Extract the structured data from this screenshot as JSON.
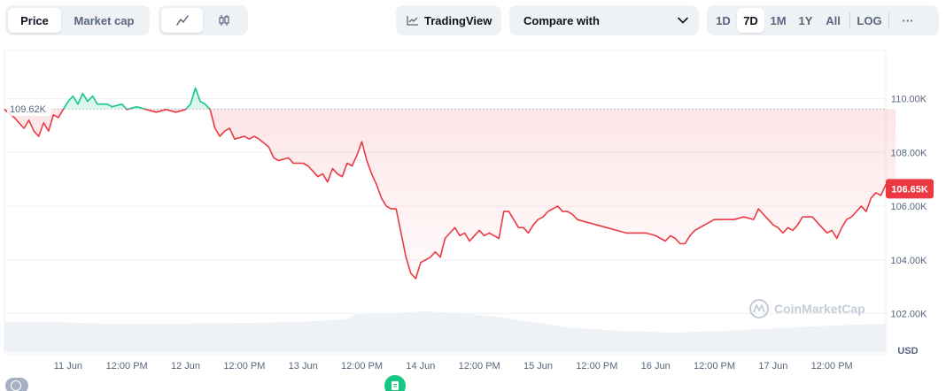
{
  "toolbar": {
    "type_tabs": [
      "Price",
      "Market cap"
    ],
    "tradingview_label": "TradingView",
    "compare_label": "Compare with",
    "ranges": [
      "1D",
      "7D",
      "1M",
      "1Y",
      "All"
    ],
    "log_label": "LOG",
    "more_label": "···"
  },
  "chart_data": {
    "type": "area",
    "y_ticks": [
      "110.00K",
      "108.00K",
      "106.00K",
      "104.00K",
      "102.00K"
    ],
    "y_tick_values": [
      110000,
      108000,
      106000,
      104000,
      102000
    ],
    "ylim": [
      100500,
      111800
    ],
    "x_ticks": [
      "11 Jun",
      "12:00 PM",
      "12 Jun",
      "12:00 PM",
      "13 Jun",
      "12:00 PM",
      "14 Jun",
      "12:00 PM",
      "15 Jun",
      "12:00 PM",
      "16 Jun",
      "12:00 PM",
      "17 Jun",
      "12:00 PM"
    ],
    "x_tick_hours": [
      24,
      36,
      48,
      60,
      72,
      84,
      96,
      108,
      120,
      132,
      144,
      156,
      168,
      180
    ],
    "xlim_hours": [
      11,
      191
    ],
    "baseline_value": 109620,
    "baseline_label": "109.62K",
    "current_label": "106.65K",
    "current_value": 106650,
    "unit": "USD",
    "watermark": "CoinMarketCap",
    "colors": {
      "up": "#16c784",
      "down": "#ea3943",
      "grid": "#eff2f5",
      "volume": "#e4e8ee"
    },
    "series": [
      {
        "values": [
          [
            11,
            109600
          ],
          [
            13,
            109300
          ],
          [
            14,
            109100
          ],
          [
            15,
            108900
          ],
          [
            16,
            109200
          ],
          [
            17,
            108800
          ],
          [
            18,
            108600
          ],
          [
            19,
            109100
          ],
          [
            20,
            108800
          ],
          [
            21,
            109400
          ],
          [
            22,
            109300
          ],
          [
            24,
            109900
          ],
          [
            25,
            110100
          ],
          [
            26,
            109800
          ],
          [
            27,
            110200
          ],
          [
            28,
            109900
          ],
          [
            29,
            110100
          ],
          [
            30,
            109800
          ],
          [
            32,
            109800
          ],
          [
            33,
            109700
          ],
          [
            35,
            109800
          ],
          [
            36,
            109600
          ],
          [
            38,
            109700
          ],
          [
            40,
            109600
          ],
          [
            42,
            109500
          ],
          [
            44,
            109600
          ],
          [
            46,
            109500
          ],
          [
            48,
            109600
          ],
          [
            49,
            109800
          ],
          [
            50,
            110400
          ],
          [
            51,
            109900
          ],
          [
            52,
            109800
          ],
          [
            53,
            109600
          ],
          [
            54,
            108900
          ],
          [
            55,
            108600
          ],
          [
            56,
            108800
          ],
          [
            57,
            108900
          ],
          [
            58,
            108500
          ],
          [
            60,
            108600
          ],
          [
            61,
            108500
          ],
          [
            62,
            108600
          ],
          [
            63,
            108500
          ],
          [
            65,
            108200
          ],
          [
            66,
            107800
          ],
          [
            67,
            107700
          ],
          [
            69,
            107800
          ],
          [
            70,
            107600
          ],
          [
            72,
            107600
          ],
          [
            73,
            107500
          ],
          [
            74,
            107300
          ],
          [
            75,
            107100
          ],
          [
            76,
            107200
          ],
          [
            77,
            106900
          ],
          [
            78,
            107400
          ],
          [
            79,
            107200
          ],
          [
            80,
            107100
          ],
          [
            81,
            107600
          ],
          [
            82,
            107500
          ],
          [
            83,
            107900
          ],
          [
            84,
            108400
          ],
          [
            85,
            107700
          ],
          [
            86,
            107200
          ],
          [
            87,
            106800
          ],
          [
            88,
            106300
          ],
          [
            89,
            106000
          ],
          [
            90,
            105900
          ],
          [
            91,
            105900
          ],
          [
            92,
            105000
          ],
          [
            93,
            104100
          ],
          [
            94,
            103500
          ],
          [
            95,
            103300
          ],
          [
            96,
            103900
          ],
          [
            97,
            104000
          ],
          [
            98,
            104100
          ],
          [
            99,
            104300
          ],
          [
            100,
            104100
          ],
          [
            101,
            104800
          ],
          [
            102,
            105000
          ],
          [
            103,
            105200
          ],
          [
            104,
            104900
          ],
          [
            105,
            105000
          ],
          [
            106,
            104700
          ],
          [
            107,
            104900
          ],
          [
            108,
            105100
          ],
          [
            109,
            104900
          ],
          [
            110,
            105000
          ],
          [
            111,
            104900
          ],
          [
            112,
            104800
          ],
          [
            113,
            105800
          ],
          [
            114,
            105800
          ],
          [
            115,
            105500
          ],
          [
            116,
            105200
          ],
          [
            117,
            105200
          ],
          [
            118,
            105000
          ],
          [
            119,
            105300
          ],
          [
            120,
            105500
          ],
          [
            121,
            105600
          ],
          [
            122,
            105800
          ],
          [
            123,
            105900
          ],
          [
            124,
            106000
          ],
          [
            125,
            105800
          ],
          [
            126,
            105800
          ],
          [
            127,
            105700
          ],
          [
            128,
            105500
          ],
          [
            130,
            105400
          ],
          [
            132,
            105300
          ],
          [
            134,
            105200
          ],
          [
            136,
            105100
          ],
          [
            138,
            105000
          ],
          [
            140,
            105000
          ],
          [
            142,
            105000
          ],
          [
            144,
            104900
          ],
          [
            145,
            104800
          ],
          [
            146,
            104700
          ],
          [
            147,
            104900
          ],
          [
            148,
            104800
          ],
          [
            149,
            104600
          ],
          [
            150,
            104600
          ],
          [
            151,
            104900
          ],
          [
            152,
            105100
          ],
          [
            154,
            105300
          ],
          [
            156,
            105500
          ],
          [
            158,
            105500
          ],
          [
            160,
            105500
          ],
          [
            162,
            105600
          ],
          [
            164,
            105500
          ],
          [
            165,
            105900
          ],
          [
            166,
            105700
          ],
          [
            167,
            105500
          ],
          [
            168,
            105300
          ],
          [
            169,
            105200
          ],
          [
            170,
            105000
          ],
          [
            171,
            105200
          ],
          [
            172,
            105100
          ],
          [
            173,
            105300
          ],
          [
            174,
            105600
          ],
          [
            176,
            105600
          ],
          [
            177,
            105400
          ],
          [
            178,
            105200
          ],
          [
            179,
            105000
          ],
          [
            180,
            105100
          ],
          [
            181,
            104800
          ],
          [
            182,
            105200
          ],
          [
            183,
            105500
          ],
          [
            184,
            105600
          ],
          [
            185,
            105800
          ],
          [
            186,
            106000
          ],
          [
            187,
            105800
          ],
          [
            188,
            106300
          ],
          [
            189,
            106500
          ],
          [
            190,
            106400
          ],
          [
            191,
            106800
          ],
          [
            192,
            106900
          ],
          [
            193,
            106700
          ]
        ]
      }
    ]
  }
}
